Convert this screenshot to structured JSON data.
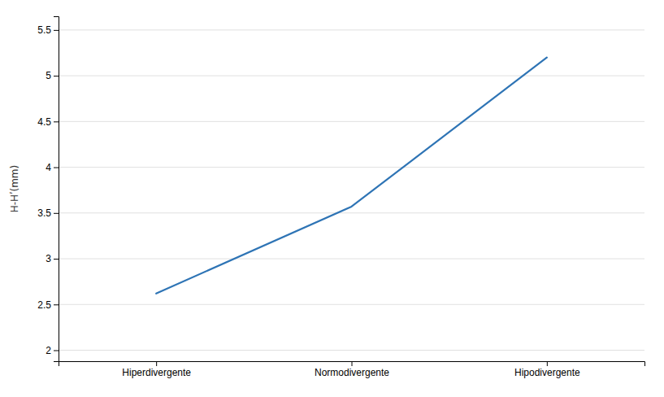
{
  "chart_data": {
    "type": "line",
    "categories": [
      "Hiperdivergente",
      "Normodivergente",
      "Hipodivergente"
    ],
    "values": [
      2.62,
      3.57,
      5.2
    ],
    "color": "#2E74B5",
    "ylabel": "H-Hʹ(mm)",
    "ylim": [
      1.88,
      5.65
    ],
    "yticks": [
      2.0,
      2.5,
      3.0,
      3.5,
      4.0,
      4.5,
      5.0,
      5.5
    ],
    "grid": true
  }
}
